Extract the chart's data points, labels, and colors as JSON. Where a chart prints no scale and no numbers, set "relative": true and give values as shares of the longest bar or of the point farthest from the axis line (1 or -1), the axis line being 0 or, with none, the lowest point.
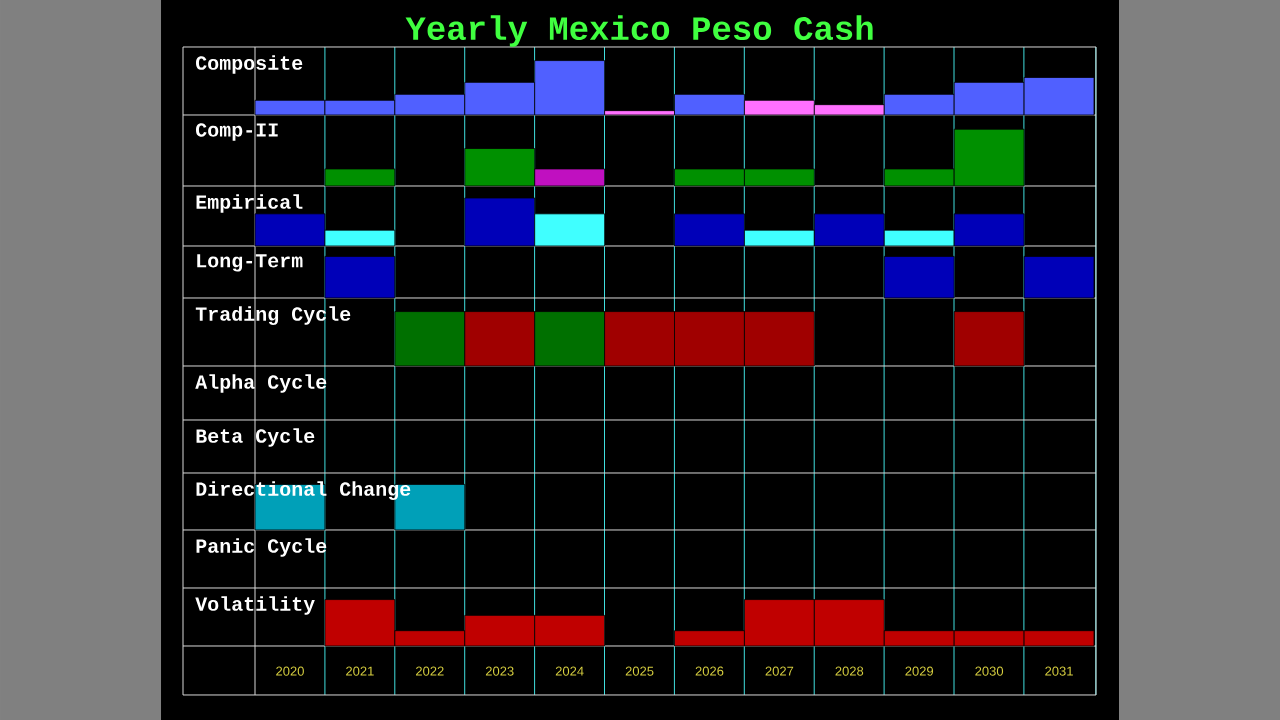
{
  "chart_data": [
    {
      "type": "bar",
      "title": "Yearly Mexico Peso Cash",
      "ylabel": "Composite",
      "relative": true,
      "tick_labels": false,
      "categories": [
        "2020",
        "2021",
        "2022",
        "2023",
        "2024",
        "2025",
        "2026",
        "2027",
        "2028",
        "2029",
        "2030",
        "2031"
      ],
      "values": [
        0.27,
        0.27,
        0.38,
        0.6,
        1,
        0.08,
        0.38,
        0.27,
        0.19,
        0.38,
        0.6,
        0.69
      ],
      "colors": [
        "#5060ff",
        "#5060ff",
        "#5060ff",
        "#5060ff",
        "#5060ff",
        "#ff70ff",
        "#5060ff",
        "#ff70ff",
        "#ff70ff",
        "#5060ff",
        "#5060ff",
        "#5060ff"
      ]
    },
    {
      "type": "bar",
      "ylabel": "Comp-II",
      "relative": true,
      "tick_labels": false,
      "categories": [
        "2020",
        "2021",
        "2022",
        "2023",
        "2024",
        "2025",
        "2026",
        "2027",
        "2028",
        "2029",
        "2030",
        "2031"
      ],
      "values": [
        null,
        0.3,
        null,
        0.66,
        0.3,
        null,
        0.3,
        0.3,
        null,
        0.3,
        1,
        null
      ],
      "colors": [
        "#009000",
        "#009000",
        "#009000",
        "#009000",
        "#c010c0",
        "#009000",
        "#009000",
        "#009000",
        "#009000",
        "#009000",
        "#009000",
        "#009000"
      ]
    },
    {
      "type": "bar",
      "ylabel": "Empirical",
      "relative": true,
      "tick_labels": false,
      "categories": [
        "2020",
        "2021",
        "2022",
        "2023",
        "2024",
        "2025",
        "2026",
        "2027",
        "2028",
        "2029",
        "2030",
        "2031"
      ],
      "values": [
        0.67,
        0.33,
        null,
        1,
        0.67,
        null,
        0.67,
        0.33,
        0.67,
        0.33,
        0.67,
        null
      ],
      "colors": [
        "#0000b8",
        "#40ffff",
        "#0000b8",
        "#0000b8",
        "#40ffff",
        "#0000b8",
        "#0000b8",
        "#40ffff",
        "#0000b8",
        "#40ffff",
        "#0000b8",
        "#0000b8"
      ]
    },
    {
      "type": "bar",
      "ylabel": "Long-Term",
      "relative": true,
      "tick_labels": false,
      "categories": [
        "2020",
        "2021",
        "2022",
        "2023",
        "2024",
        "2025",
        "2026",
        "2027",
        "2028",
        "2029",
        "2030",
        "2031"
      ],
      "values": [
        null,
        1,
        null,
        null,
        null,
        null,
        null,
        null,
        null,
        1,
        null,
        1
      ],
      "colors": [
        "#0000b8",
        "#0000b8",
        "#0000b8",
        "#0000b8",
        "#0000b8",
        "#0000b8",
        "#0000b8",
        "#0000b8",
        "#0000b8",
        "#0000b8",
        "#0000b8",
        "#0000b8"
      ]
    },
    {
      "type": "bar",
      "ylabel": "Trading Cycle",
      "relative": true,
      "tick_labels": false,
      "categories": [
        "2020",
        "2021",
        "2022",
        "2023",
        "2024",
        "2025",
        "2026",
        "2027",
        "2028",
        "2029",
        "2030",
        "2031"
      ],
      "values": [
        null,
        null,
        1,
        1,
        1,
        1,
        1,
        1,
        null,
        null,
        1,
        null
      ],
      "colors": [
        "#a00000",
        "#a00000",
        "#007000",
        "#a00000",
        "#007000",
        "#a00000",
        "#a00000",
        "#a00000",
        "#a00000",
        "#a00000",
        "#a00000",
        "#a00000"
      ]
    },
    {
      "type": "other",
      "title": "Alpha Cycle"
    },
    {
      "type": "other",
      "title": "Beta Cycle"
    },
    {
      "type": "bar",
      "ylabel": "Directional Change",
      "relative": true,
      "tick_labels": false,
      "categories": [
        "2020",
        "2021",
        "2022",
        "2023",
        "2024",
        "2025",
        "2026",
        "2027",
        "2028",
        "2029",
        "2030",
        "2031"
      ],
      "values": [
        1,
        null,
        1,
        null,
        null,
        null,
        null,
        null,
        null,
        null,
        null,
        null
      ],
      "colors": [
        "#00a0b8",
        "#00a0b8",
        "#00a0b8",
        "#00a0b8",
        "#00a0b8",
        "#00a0b8",
        "#00a0b8",
        "#00a0b8",
        "#00a0b8",
        "#00a0b8",
        "#00a0b8",
        "#00a0b8"
      ]
    },
    {
      "type": "other",
      "title": "Panic Cycle"
    },
    {
      "type": "bar",
      "ylabel": "Volatility",
      "relative": true,
      "tick_labels": "x",
      "categories": [
        "2020",
        "2021",
        "2022",
        "2023",
        "2024",
        "2025",
        "2026",
        "2027",
        "2028",
        "2029",
        "2030",
        "2031"
      ],
      "values": [
        null,
        1,
        0.33,
        0.66,
        0.66,
        null,
        0.33,
        1,
        1,
        0.33,
        0.33,
        0.33
      ],
      "colors": [
        "#c00000",
        "#c00000",
        "#c00000",
        "#c00000",
        "#c00000",
        "#c00000",
        "#c00000",
        "#c00000",
        "#c00000",
        "#c00000",
        "#c00000",
        "#c00000"
      ]
    }
  ]
}
